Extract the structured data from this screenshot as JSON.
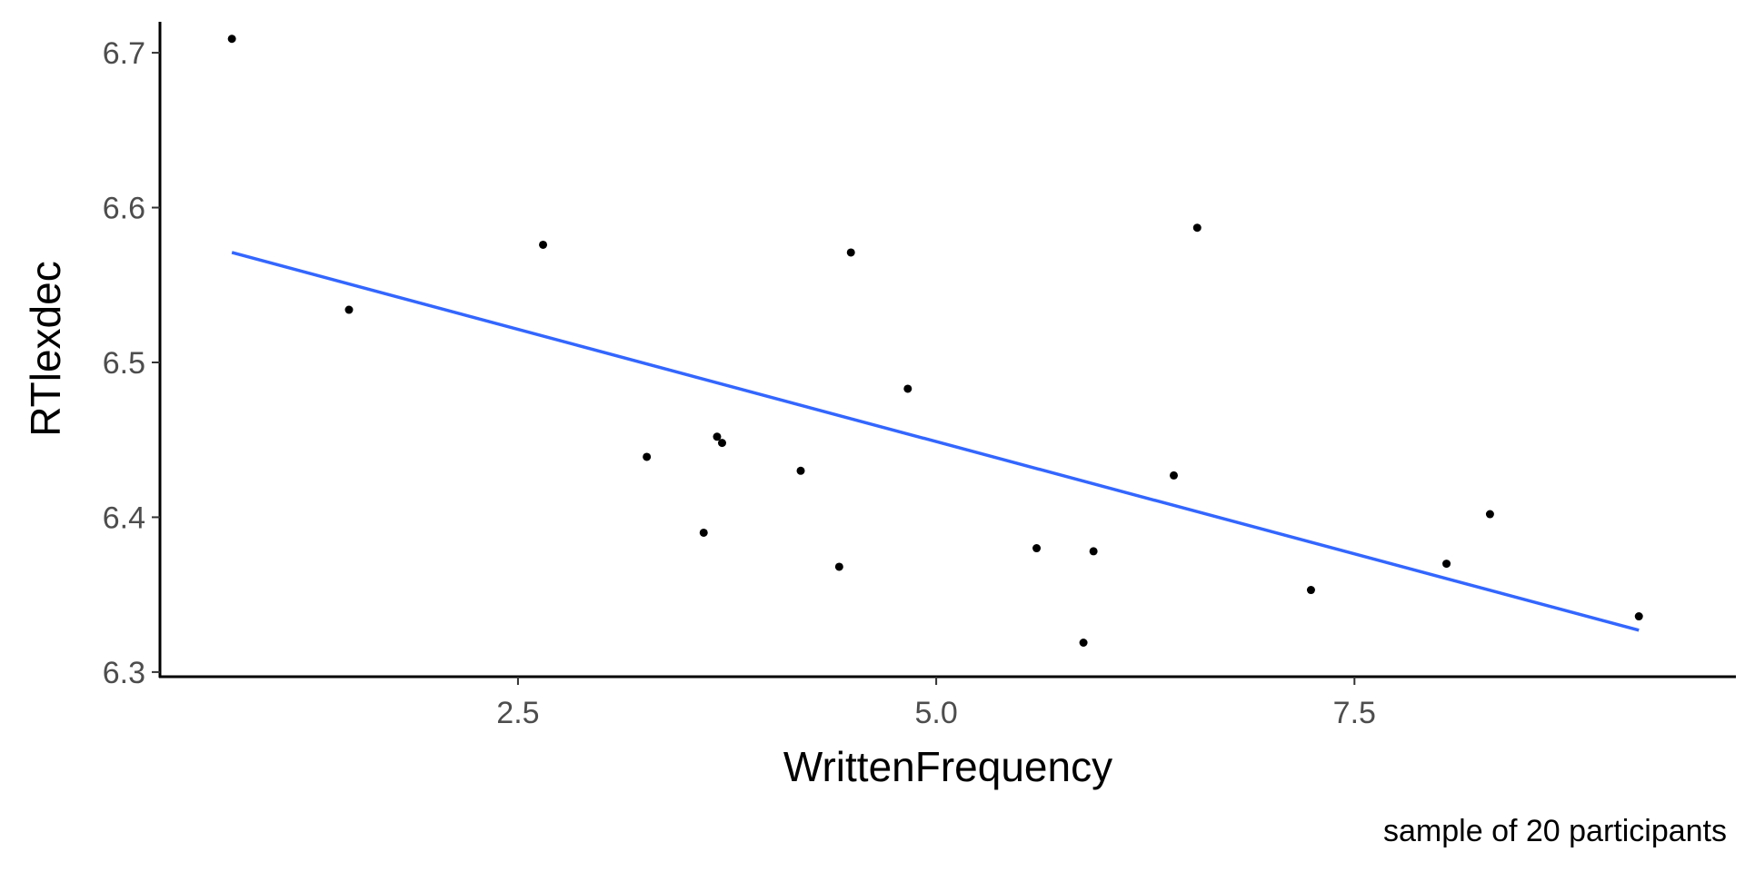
{
  "chart_data": {
    "type": "scatter",
    "xlabel": "WrittenFrequency",
    "ylabel": "RTlexdec",
    "caption": "sample of 20 participants",
    "xlim": [
      0.36,
      9.78
    ],
    "ylim": [
      6.297,
      6.72
    ],
    "xticks": [
      2.5,
      5.0,
      7.5
    ],
    "xtick_labels": [
      "2.5",
      "5.0",
      "7.5"
    ],
    "yticks": [
      6.3,
      6.4,
      6.5,
      6.6,
      6.7
    ],
    "ytick_labels": [
      "6.3",
      "6.4",
      "6.5",
      "6.6",
      "6.7"
    ],
    "grid": false,
    "points": [
      {
        "x": 0.79,
        "y": 6.709
      },
      {
        "x": 1.49,
        "y": 6.534
      },
      {
        "x": 2.65,
        "y": 6.576
      },
      {
        "x": 3.27,
        "y": 6.439
      },
      {
        "x": 3.61,
        "y": 6.39
      },
      {
        "x": 3.69,
        "y": 6.452
      },
      {
        "x": 3.72,
        "y": 6.448
      },
      {
        "x": 4.19,
        "y": 6.43
      },
      {
        "x": 4.42,
        "y": 6.368
      },
      {
        "x": 4.49,
        "y": 6.571
      },
      {
        "x": 4.83,
        "y": 6.483
      },
      {
        "x": 5.6,
        "y": 6.38
      },
      {
        "x": 5.88,
        "y": 6.319
      },
      {
        "x": 5.94,
        "y": 6.378
      },
      {
        "x": 6.42,
        "y": 6.427
      },
      {
        "x": 6.56,
        "y": 6.587
      },
      {
        "x": 7.24,
        "y": 6.353
      },
      {
        "x": 8.05,
        "y": 6.37
      },
      {
        "x": 8.31,
        "y": 6.402
      },
      {
        "x": 9.2,
        "y": 6.336
      }
    ],
    "fit_line": {
      "x": [
        0.79,
        9.2
      ],
      "y": [
        6.571,
        6.327
      ]
    },
    "colors": {
      "points": "#000000",
      "fit_line": "#3366FF",
      "axis": "#000000",
      "tick_label": "#4d4d4d"
    }
  }
}
